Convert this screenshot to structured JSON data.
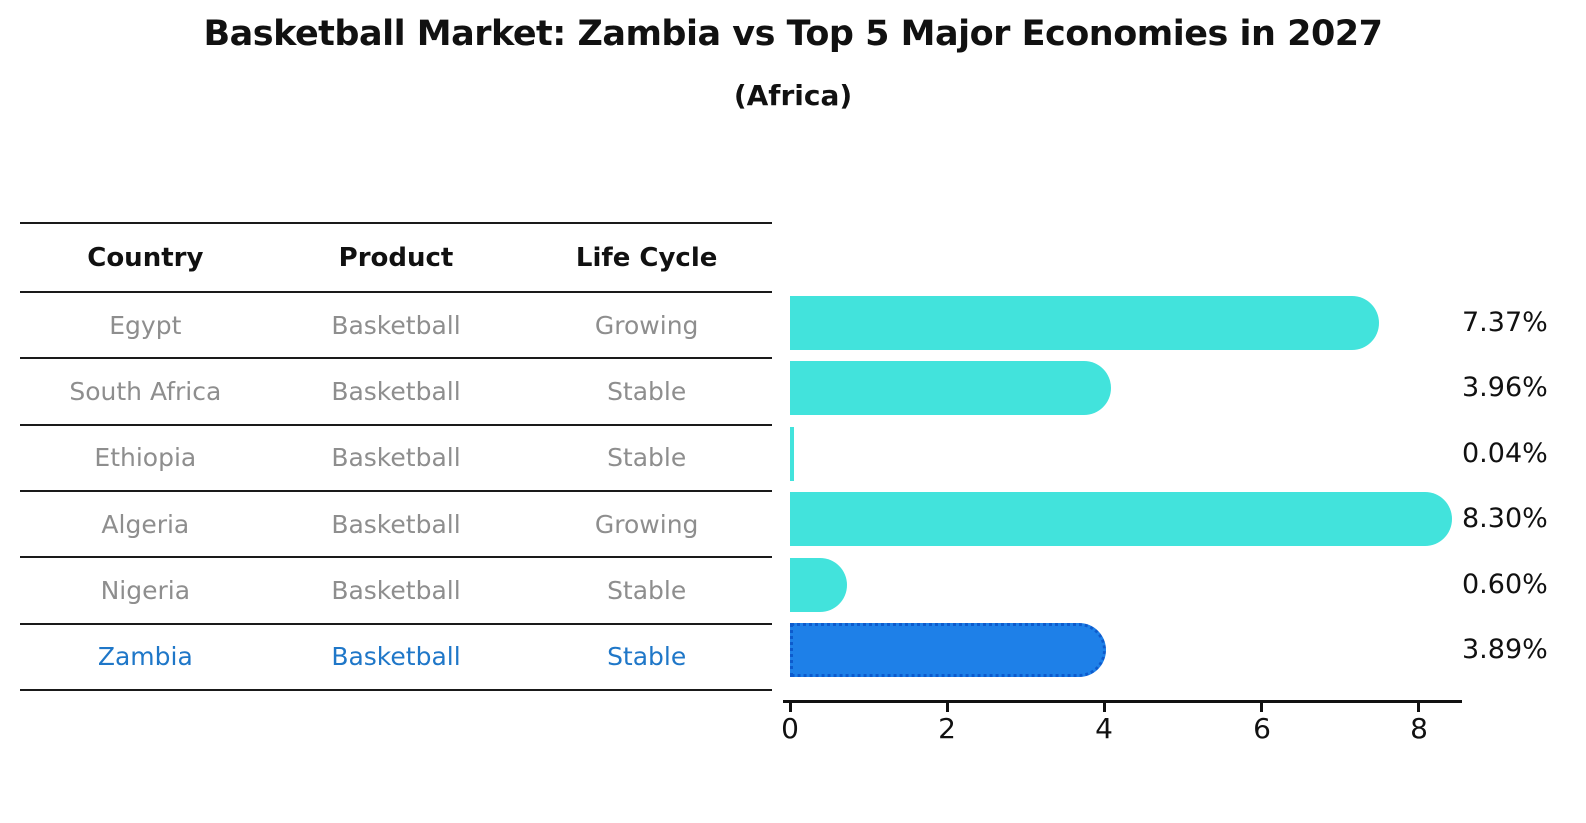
{
  "title": "Basketball Market: Zambia vs Top 5 Major Economies in 2027",
  "subtitle": "(Africa)",
  "table": {
    "headers": [
      "Country",
      "Product",
      "Life Cycle"
    ],
    "rows": [
      {
        "country": "Egypt",
        "product": "Basketball",
        "life_cycle": "Growing",
        "highlight": false
      },
      {
        "country": "South Africa",
        "product": "Basketball",
        "life_cycle": "Stable",
        "highlight": false
      },
      {
        "country": "Ethiopia",
        "product": "Basketball",
        "life_cycle": "Stable",
        "highlight": false
      },
      {
        "country": "Algeria",
        "product": "Basketball",
        "life_cycle": "Growing",
        "highlight": false
      },
      {
        "country": "Nigeria",
        "product": "Basketball",
        "life_cycle": "Stable",
        "highlight": false
      },
      {
        "country": "Zambia",
        "product": "Basketball",
        "life_cycle": "Stable",
        "highlight": true
      }
    ]
  },
  "chart_data": {
    "type": "bar",
    "orientation": "horizontal",
    "title": "Basketball Market: Zambia vs Top 5 Major Economies in 2027",
    "subtitle": "(Africa)",
    "categories": [
      "Egypt",
      "South Africa",
      "Ethiopia",
      "Algeria",
      "Nigeria",
      "Zambia"
    ],
    "values": [
      7.37,
      3.96,
      0.04,
      8.3,
      0.6,
      3.89
    ],
    "value_labels": [
      "7.37%",
      "3.96%",
      "0.04%",
      "8.30%",
      "0.60%",
      "3.89%"
    ],
    "highlight_category": "Zambia",
    "xlabel": "",
    "ylabel": "",
    "xlim": [
      0,
      8.6
    ],
    "xticks": [
      0,
      2,
      4,
      6,
      8
    ],
    "grid": false,
    "legend": "none",
    "colors": {
      "default_bar": "#42e3dc",
      "highlight_bar": "#1e80e8",
      "highlight_border": "#0d5bcd",
      "highlight_text": "#1f77c8",
      "row_text": "#8e8e8e",
      "axis": "#111111",
      "header_text": "#111111"
    }
  }
}
